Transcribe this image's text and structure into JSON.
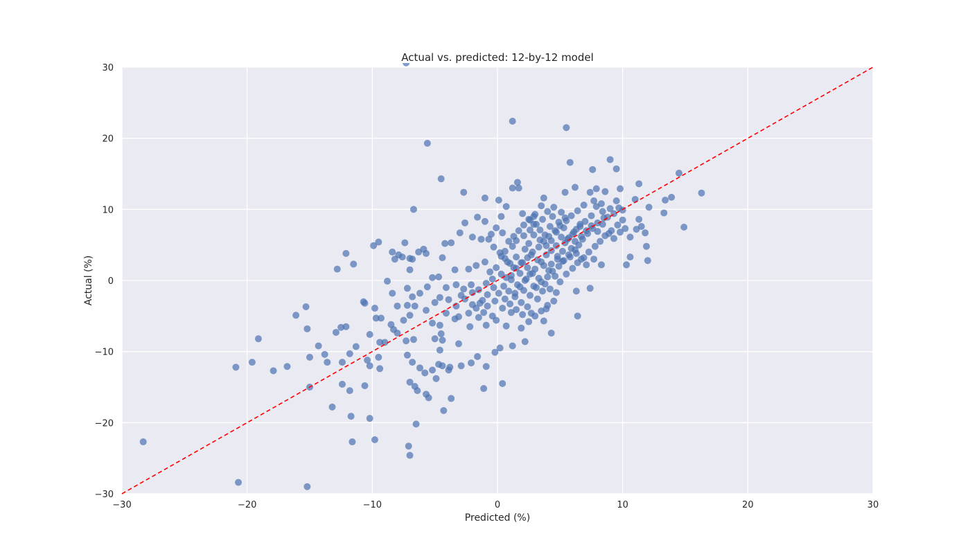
{
  "chart_data": {
    "type": "scatter",
    "title": "Actual vs. predicted: 12-by-12 model",
    "xlabel": "Predicted (%)",
    "ylabel": "Actual (%)",
    "xlim": [
      -30,
      30
    ],
    "ylim": [
      -30,
      30
    ],
    "xticks": [
      -30,
      -20,
      -10,
      0,
      10,
      20,
      30
    ],
    "yticks": [
      -30,
      -20,
      -10,
      0,
      10,
      20,
      30
    ],
    "xtick_labels": [
      "−30",
      "−20",
      "−10",
      "0",
      "10",
      "20",
      "30"
    ],
    "ytick_labels": [
      "−30",
      "−20",
      "−10",
      "0",
      "10",
      "20",
      "30"
    ],
    "grid": true,
    "background": "#eaeaf2",
    "grid_color": "#ffffff",
    "point_color": "#4c72b0",
    "point_opacity": 0.7,
    "reference_line": {
      "x": [
        -30,
        30
      ],
      "y": [
        -30,
        30
      ],
      "color": "#ff0000",
      "style": "dashed"
    },
    "points": [
      [
        -7.3,
        30.6
      ],
      [
        1.2,
        22.4
      ],
      [
        5.5,
        21.5
      ],
      [
        -5.6,
        19.3
      ],
      [
        5.8,
        16.6
      ],
      [
        9.0,
        17.0
      ],
      [
        7.6,
        15.6
      ],
      [
        9.5,
        15.7
      ],
      [
        14.5,
        15.1
      ],
      [
        -4.5,
        14.3
      ],
      [
        1.6,
        13.8
      ],
      [
        1.2,
        13.0
      ],
      [
        1.7,
        13.0
      ],
      [
        6.2,
        13.1
      ],
      [
        7.9,
        12.9
      ],
      [
        11.3,
        13.6
      ],
      [
        9.8,
        12.9
      ],
      [
        -2.7,
        12.4
      ],
      [
        5.4,
        12.4
      ],
      [
        16.3,
        12.3
      ],
      [
        8.6,
        12.5
      ],
      [
        7.4,
        12.4
      ],
      [
        13.4,
        11.3
      ],
      [
        13.9,
        11.7
      ],
      [
        11.0,
        11.4
      ],
      [
        -1.0,
        11.6
      ],
      [
        0.1,
        11.3
      ],
      [
        3.7,
        11.6
      ],
      [
        9.5,
        11.2
      ],
      [
        12.1,
        10.3
      ],
      [
        -6.7,
        10.0
      ],
      [
        0.7,
        10.4
      ],
      [
        9.0,
        10.1
      ],
      [
        10.0,
        9.9
      ],
      [
        13.3,
        9.5
      ],
      [
        14.9,
        7.5
      ],
      [
        0.3,
        9.0
      ],
      [
        2.9,
        9.0
      ],
      [
        -2.6,
        8.1
      ],
      [
        -1.6,
        8.9
      ],
      [
        -1.0,
        8.3
      ],
      [
        11.3,
        8.6
      ],
      [
        11.5,
        7.6
      ],
      [
        11.8,
        6.7
      ],
      [
        -3.0,
        6.7
      ],
      [
        -2.0,
        6.1
      ],
      [
        -1.3,
        5.8
      ],
      [
        -0.7,
        5.8
      ],
      [
        -3.7,
        5.3
      ],
      [
        -4.2,
        5.2
      ],
      [
        -9.5,
        5.4
      ],
      [
        -9.9,
        4.9
      ],
      [
        -7.4,
        5.3
      ],
      [
        -8.4,
        4.0
      ],
      [
        -7.9,
        3.6
      ],
      [
        -8.2,
        3.0
      ],
      [
        -7.6,
        3.3
      ],
      [
        -6.3,
        4.0
      ],
      [
        -5.9,
        4.4
      ],
      [
        -5.7,
        3.8
      ],
      [
        -7.0,
        3.1
      ],
      [
        -12.1,
        3.8
      ],
      [
        -11.5,
        2.3
      ],
      [
        -12.8,
        1.6
      ],
      [
        -7.0,
        1.5
      ],
      [
        -6.8,
        3.0
      ],
      [
        -4.4,
        3.2
      ],
      [
        -3.4,
        1.5
      ],
      [
        -2.3,
        1.6
      ],
      [
        -1.7,
        2.1
      ],
      [
        -1.0,
        2.6
      ],
      [
        11.9,
        4.8
      ],
      [
        12.0,
        2.8
      ],
      [
        10.6,
        3.3
      ],
      [
        10.3,
        2.2
      ],
      [
        8.3,
        2.2
      ],
      [
        7.7,
        3.0
      ],
      [
        7.4,
        -1.1
      ],
      [
        6.3,
        -1.5
      ],
      [
        4.7,
        -1.7
      ],
      [
        6.4,
        -5.0
      ],
      [
        4.3,
        -7.4
      ],
      [
        3.9,
        -4.0
      ],
      [
        3.7,
        -5.7
      ],
      [
        2.2,
        -8.6
      ],
      [
        1.9,
        -6.7
      ],
      [
        1.2,
        -9.2
      ],
      [
        0.7,
        -6.4
      ],
      [
        0.2,
        -9.5
      ],
      [
        -0.2,
        -10.1
      ],
      [
        -0.9,
        -12.1
      ],
      [
        -1.1,
        -15.2
      ],
      [
        0.4,
        -14.5
      ],
      [
        -1.6,
        -10.7
      ],
      [
        -2.1,
        -11.6
      ],
      [
        -2.9,
        -12.0
      ],
      [
        -3.1,
        -8.9
      ],
      [
        -3.8,
        -12.2
      ],
      [
        -3.9,
        -12.6
      ],
      [
        -4.4,
        -12.0
      ],
      [
        -4.3,
        -18.3
      ],
      [
        -3.7,
        -16.6
      ],
      [
        -5.5,
        -16.5
      ],
      [
        -5.7,
        -16.0
      ],
      [
        -6.4,
        -15.5
      ],
      [
        -6.6,
        -14.9
      ],
      [
        -7.0,
        -14.3
      ],
      [
        -6.5,
        -20.2
      ],
      [
        -7.1,
        -23.3
      ],
      [
        -7.0,
        -24.6
      ],
      [
        -10.2,
        -19.4
      ],
      [
        -11.7,
        -19.1
      ],
      [
        -11.6,
        -22.7
      ],
      [
        -9.8,
        -22.4
      ],
      [
        -12.4,
        -14.6
      ],
      [
        -11.8,
        -15.5
      ],
      [
        -13.2,
        -17.8
      ],
      [
        -15.0,
        -15.0
      ],
      [
        -15.0,
        -10.8
      ],
      [
        -14.3,
        -9.2
      ],
      [
        -13.8,
        -10.4
      ],
      [
        -13.6,
        -11.5
      ],
      [
        -12.4,
        -11.5
      ],
      [
        -12.1,
        -6.5
      ],
      [
        -12.5,
        -6.6
      ],
      [
        -11.3,
        -9.3
      ],
      [
        -11.8,
        -10.3
      ],
      [
        -10.7,
        -3.0
      ],
      [
        -10.6,
        -3.2
      ],
      [
        -10.2,
        -7.6
      ],
      [
        -9.8,
        -3.9
      ],
      [
        -9.7,
        -5.3
      ],
      [
        -9.3,
        -5.3
      ],
      [
        -9.4,
        -8.7
      ],
      [
        -9.0,
        -8.7
      ],
      [
        -8.5,
        -6.2
      ],
      [
        -8.3,
        -6.9
      ],
      [
        -8.0,
        -3.6
      ],
      [
        -7.5,
        -5.6
      ],
      [
        -7.0,
        -4.9
      ],
      [
        -7.2,
        -3.5
      ],
      [
        -6.8,
        -2.3
      ],
      [
        -6.6,
        -3.6
      ],
      [
        -8.0,
        -7.4
      ],
      [
        -7.3,
        -8.5
      ],
      [
        -7.2,
        -10.5
      ],
      [
        -6.7,
        -8.3
      ],
      [
        -6.8,
        -11.5
      ],
      [
        -6.2,
        -12.3
      ],
      [
        -5.8,
        -13.0
      ],
      [
        -5.2,
        -12.6
      ],
      [
        -4.9,
        -13.8
      ],
      [
        -4.7,
        -11.8
      ],
      [
        -4.6,
        -9.8
      ],
      [
        -5.0,
        -8.2
      ],
      [
        -4.5,
        -7.5
      ],
      [
        -4.4,
        -8.4
      ],
      [
        -10.4,
        -11.2
      ],
      [
        -10.6,
        -14.8
      ],
      [
        -10.2,
        -12.0
      ],
      [
        -9.5,
        -10.8
      ],
      [
        -9.4,
        -12.4
      ],
      [
        -15.3,
        -3.7
      ],
      [
        -15.2,
        -6.8
      ],
      [
        -16.1,
        -4.9
      ],
      [
        -12.9,
        -7.3
      ],
      [
        -17.9,
        -12.7
      ],
      [
        -19.1,
        -8.2
      ],
      [
        -19.6,
        -11.5
      ],
      [
        -16.8,
        -12.1
      ],
      [
        -20.9,
        -12.2
      ],
      [
        -28.3,
        -22.7
      ],
      [
        -20.7,
        -28.4
      ],
      [
        -15.2,
        -29.0
      ],
      [
        -8.8,
        -0.1
      ],
      [
        -8.4,
        -1.8
      ],
      [
        -7.2,
        -1.1
      ],
      [
        -6.2,
        -1.8
      ],
      [
        -5.6,
        -0.9
      ],
      [
        -5.2,
        0.4
      ],
      [
        -4.7,
        0.5
      ],
      [
        -4.1,
        -1.0
      ],
      [
        -3.3,
        -0.6
      ],
      [
        -2.7,
        -1.2
      ],
      [
        -2.1,
        -0.6
      ],
      [
        -2.6,
        -2.6
      ],
      [
        -2.0,
        -3.4
      ],
      [
        -1.4,
        -3.2
      ],
      [
        -1.1,
        -4.5
      ],
      [
        -0.4,
        -5.0
      ],
      [
        -0.1,
        -5.6
      ],
      [
        -0.9,
        -6.3
      ],
      [
        -2.2,
        -6.5
      ],
      [
        -3.1,
        -5.1
      ],
      [
        -3.4,
        -5.4
      ],
      [
        -4.1,
        -4.6
      ],
      [
        -4.6,
        -6.3
      ],
      [
        -5.2,
        -6.0
      ],
      [
        -5.7,
        -4.2
      ],
      [
        -5.0,
        -3.1
      ],
      [
        -4.6,
        -2.4
      ],
      [
        -3.9,
        -2.7
      ],
      [
        -3.3,
        -3.6
      ],
      [
        -2.9,
        -2.1
      ],
      [
        -2.0,
        -1.7
      ],
      [
        -1.5,
        -1.3
      ],
      [
        -0.9,
        -0.4
      ],
      [
        -0.4,
        0.2
      ],
      [
        -0.6,
        1.2
      ],
      [
        -0.1,
        1.8
      ],
      [
        0.3,
        0.9
      ],
      [
        0.7,
        0.4
      ],
      [
        1.1,
        0.7
      ],
      [
        0.5,
        -0.8
      ],
      [
        0.9,
        -1.5
      ],
      [
        1.4,
        -2.3
      ],
      [
        1.9,
        -3.1
      ],
      [
        2.4,
        -3.7
      ],
      [
        2.7,
        -4.6
      ],
      [
        3.2,
        -2.6
      ],
      [
        3.6,
        -1.5
      ],
      [
        2.9,
        -0.8
      ],
      [
        2.3,
        0.2
      ],
      [
        1.8,
        1.0
      ],
      [
        1.3,
        1.8
      ],
      [
        0.8,
        2.6
      ],
      [
        0.3,
        3.4
      ],
      [
        0.6,
        4.1
      ],
      [
        1.2,
        4.8
      ],
      [
        1.5,
        5.6
      ],
      [
        2.1,
        6.3
      ],
      [
        2.6,
        7.1
      ],
      [
        3.1,
        7.9
      ],
      [
        3.6,
        8.6
      ],
      [
        4.2,
        7.6
      ],
      [
        4.7,
        6.8
      ],
      [
        5.1,
        6.1
      ],
      [
        5.4,
        5.3
      ],
      [
        5.9,
        4.5
      ],
      [
        6.3,
        3.8
      ],
      [
        6.7,
        3.0
      ],
      [
        7.1,
        2.2
      ],
      [
        5.2,
        2.7
      ],
      [
        4.8,
        3.4
      ],
      [
        4.3,
        4.2
      ],
      [
        3.9,
        4.9
      ],
      [
        3.4,
        5.7
      ],
      [
        2.9,
        6.4
      ],
      [
        2.5,
        5.2
      ],
      [
        2.2,
        4.4
      ],
      [
        2.7,
        3.6
      ],
      [
        3.2,
        2.9
      ],
      [
        3.7,
        2.1
      ],
      [
        4.1,
        1.4
      ],
      [
        4.6,
        0.6
      ],
      [
        5.0,
        -0.2
      ],
      [
        5.5,
        0.9
      ],
      [
        6.0,
        1.7
      ],
      [
        6.4,
        2.5
      ],
      [
        6.9,
        3.2
      ],
      [
        7.3,
        4.0
      ],
      [
        7.8,
        4.8
      ],
      [
        8.2,
        5.5
      ],
      [
        8.6,
        6.3
      ],
      [
        9.1,
        7.0
      ],
      [
        9.6,
        7.8
      ],
      [
        10.0,
        8.5
      ],
      [
        8.8,
        8.9
      ],
      [
        8.4,
        9.7
      ],
      [
        7.9,
        10.4
      ],
      [
        7.5,
        9.1
      ],
      [
        7.0,
        8.3
      ],
      [
        6.6,
        7.6
      ],
      [
        6.1,
        6.8
      ],
      [
        5.7,
        6.0
      ],
      [
        5.3,
        7.4
      ],
      [
        4.9,
        8.2
      ],
      [
        4.4,
        9.0
      ],
      [
        4.0,
        9.7
      ],
      [
        3.5,
        10.5
      ],
      [
        3.0,
        9.3
      ],
      [
        2.6,
        8.5
      ],
      [
        2.1,
        7.8
      ],
      [
        1.7,
        7.0
      ],
      [
        1.3,
        6.2
      ],
      [
        0.9,
        5.5
      ],
      [
        0.4,
        6.7
      ],
      [
        -0.1,
        7.4
      ],
      [
        -0.5,
        6.5
      ],
      [
        -0.3,
        4.7
      ],
      [
        0.2,
        3.9
      ],
      [
        0.6,
        3.1
      ],
      [
        1.0,
        2.4
      ],
      [
        1.5,
        3.3
      ],
      [
        2.0,
        2.5
      ],
      [
        2.4,
        1.8
      ],
      [
        2.8,
        1.0
      ],
      [
        3.3,
        0.3
      ],
      [
        3.8,
        -0.5
      ],
      [
        4.2,
        -1.2
      ],
      [
        4.5,
        -2.9
      ],
      [
        4.0,
        -3.5
      ],
      [
        3.5,
        -4.3
      ],
      [
        3.0,
        -5.0
      ],
      [
        2.5,
        -5.8
      ],
      [
        2.0,
        -4.8
      ],
      [
        1.5,
        -4.1
      ],
      [
        1.0,
        -3.3
      ],
      [
        0.6,
        -2.6
      ],
      [
        0.1,
        -1.8
      ],
      [
        -0.3,
        -1.0
      ],
      [
        -0.8,
        -2.0
      ],
      [
        -1.2,
        -2.8
      ],
      [
        -1.7,
        -3.9
      ],
      [
        -2.3,
        -4.6
      ],
      [
        -1.5,
        -5.2
      ],
      [
        -0.8,
        -3.6
      ],
      [
        -0.2,
        -2.9
      ],
      [
        0.4,
        -3.9
      ],
      [
        1.1,
        -4.5
      ],
      [
        5.8,
        3.3
      ],
      [
        6.2,
        4.3
      ],
      [
        6.5,
        5.0
      ],
      [
        6.8,
        5.8
      ],
      [
        7.2,
        6.6
      ],
      [
        7.6,
        7.3
      ],
      [
        8.0,
        8.1
      ],
      [
        8.5,
        8.8
      ],
      [
        9.3,
        9.4
      ],
      [
        9.7,
        10.2
      ],
      [
        8.3,
        10.8
      ],
      [
        7.7,
        11.2
      ],
      [
        6.9,
        10.6
      ],
      [
        6.4,
        9.8
      ],
      [
        5.9,
        9.1
      ],
      [
        5.5,
        8.4
      ],
      [
        5.0,
        7.7
      ],
      [
        4.6,
        7.0
      ],
      [
        4.1,
        6.2
      ],
      [
        3.7,
        5.5
      ],
      [
        3.3,
        4.7
      ],
      [
        2.8,
        4.0
      ],
      [
        2.4,
        3.2
      ],
      [
        1.9,
        2.5
      ],
      [
        1.5,
        1.7
      ],
      [
        1.1,
        0.1
      ],
      [
        1.6,
        -0.6
      ],
      [
        2.1,
        -1.4
      ],
      [
        2.6,
        -2.1
      ],
      [
        3.1,
        -1.0
      ],
      [
        3.5,
        -0.2
      ],
      [
        4.0,
        0.5
      ],
      [
        4.4,
        1.3
      ],
      [
        4.9,
        2.0
      ],
      [
        5.3,
        2.8
      ],
      [
        5.7,
        3.6
      ],
      [
        6.2,
        5.5
      ],
      [
        6.7,
        6.2
      ],
      [
        7.1,
        7.0
      ],
      [
        7.5,
        7.7
      ],
      [
        8.0,
        6.9
      ],
      [
        8.4,
        7.9
      ],
      [
        8.9,
        6.6
      ],
      [
        9.3,
        5.9
      ],
      [
        9.8,
        6.8
      ],
      [
        10.2,
        7.3
      ],
      [
        10.6,
        6.1
      ],
      [
        11.1,
        7.2
      ],
      [
        5.2,
        4.1
      ],
      [
        4.7,
        4.9
      ],
      [
        4.3,
        5.6
      ],
      [
        3.8,
        6.4
      ],
      [
        3.4,
        7.1
      ],
      [
        2.9,
        7.9
      ],
      [
        2.5,
        8.6
      ],
      [
        2.0,
        9.4
      ],
      [
        5.6,
        5.8
      ],
      [
        6.0,
        6.5
      ],
      [
        6.3,
        7.2
      ],
      [
        6.6,
        7.9
      ],
      [
        5.4,
        8.8
      ],
      [
        5.1,
        9.6
      ],
      [
        4.5,
        10.3
      ],
      [
        4.8,
        3.0
      ],
      [
        4.3,
        2.3
      ],
      [
        3.9,
        3.6
      ],
      [
        3.5,
        2.6
      ],
      [
        3.0,
        1.6
      ],
      [
        2.6,
        0.9
      ],
      [
        2.2,
        0.0
      ],
      [
        1.8,
        -0.9
      ],
      [
        1.4,
        -1.8
      ]
    ]
  }
}
